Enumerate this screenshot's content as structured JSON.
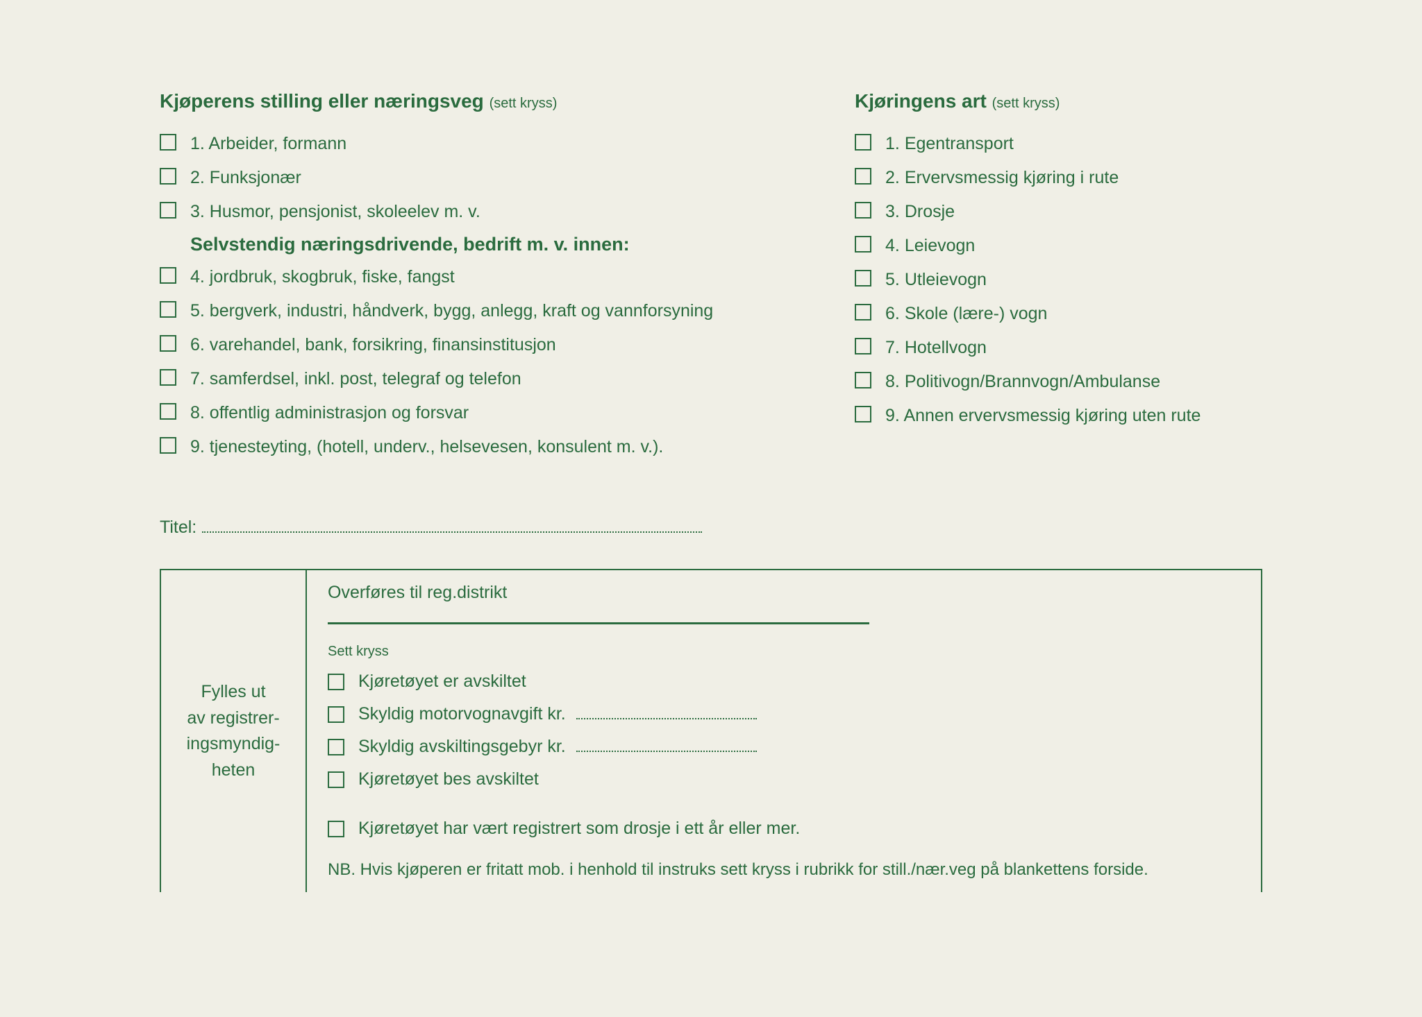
{
  "colors": {
    "text": "#2a6b3e",
    "background": "#f0efe6",
    "border": "#2a6b3e"
  },
  "leftColumn": {
    "title": "Kjøperens stilling eller næringsveg",
    "titleHint": "(sett kryss)",
    "items1": [
      "1. Arbeider, formann",
      "2. Funksjonær",
      "3. Husmor, pensjonist, skoleelev m. v."
    ],
    "subTitle": "Selvstendig næringsdrivende, bedrift m. v. innen:",
    "items2": [
      "4. jordbruk, skogbruk, fiske, fangst",
      "5. bergverk, industri, håndverk, bygg, anlegg, kraft og vannforsyning",
      "6. varehandel, bank, forsikring, finansinstitusjon",
      "7. samferdsel, inkl. post, telegraf og telefon",
      "8. offentlig administrasjon og forsvar",
      "9. tjenesteyting, (hotell, underv., helsevesen, konsulent m. v.)."
    ]
  },
  "rightColumn": {
    "title": "Kjøringens art",
    "titleHint": "(sett kryss)",
    "items": [
      "1. Egentransport",
      "2. Ervervsmessig kjøring i rute",
      "3. Drosje",
      "4. Leievogn",
      "5. Utleievogn",
      "6. Skole (lære-) vogn",
      "7. Hotellvogn",
      "8. Politivogn/Brannvogn/Ambulanse",
      "9. Annen ervervsmessig kjøring uten rute"
    ]
  },
  "titelLabel": "Titel:",
  "bottomBox": {
    "leftText": "Fylles ut av registrer-ingsmyndig-heten",
    "overfores": "Overføres til reg.distrikt",
    "settKryss": "Sett kryss",
    "checkItems": [
      "Kjøretøyet er avskiltet",
      "Skyldig motorvognavgift kr.",
      "Skyldig avskiltingsgebyr kr.",
      "Kjøretøyet bes avskiltet"
    ],
    "lastCheck": "Kjøretøyet har vært registrert som drosje i ett år eller mer.",
    "nbText": "NB. Hvis kjøperen er fritatt mob. i henhold til instruks sett kryss i rubrikk for still./nær.veg på blankettens forside."
  }
}
